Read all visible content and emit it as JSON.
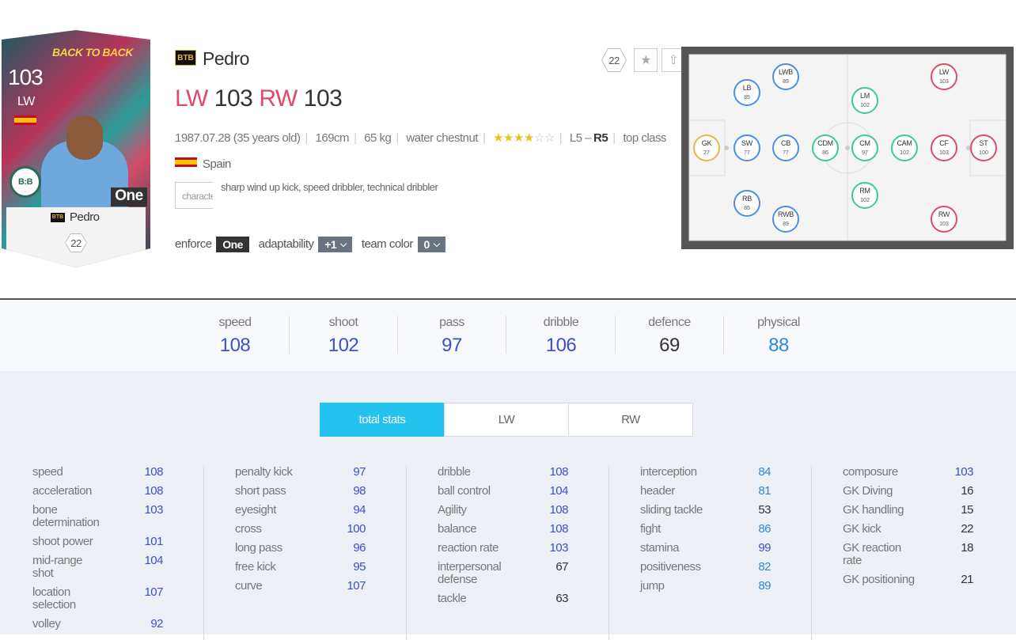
{
  "card": {
    "ovr": "103",
    "position": "LW",
    "season": "BACK TO BACK",
    "badge": "One",
    "emblem": "B:B",
    "tag": "BTB",
    "name": "Pedro",
    "level": "22"
  },
  "header": {
    "tag": "BTB",
    "name": "Pedro",
    "level": "22",
    "positions": [
      {
        "pos": "LW",
        "ovr": "103"
      },
      {
        "pos": "RW",
        "ovr": "103"
      }
    ]
  },
  "info": {
    "birth": "1987.07.28 (35 years old)",
    "height": "169cm",
    "weight": "65 kg",
    "body": "water chestnut",
    "stars_filled": "★★★★",
    "stars_empty": "☆☆",
    "foot_left": "L5 –",
    "foot_right": "R5",
    "grade": "top class",
    "nation": "Spain",
    "characteristic_label": "characteristic",
    "traits": "sharp wind up kick, speed dribbler, technical dribbler"
  },
  "controls": {
    "enforce_label": "enforce",
    "enforce": "One",
    "adaptability_label": "adaptability",
    "adaptability": "+1",
    "team_color_label": "team color",
    "team_color": "0"
  },
  "formation": {
    "nodes": [
      {
        "pos": "GK",
        "value": "27",
        "color": "#e8b64a"
      },
      {
        "pos": "LB",
        "value": "85",
        "color": "#4a90e2"
      },
      {
        "pos": "SW",
        "value": "77",
        "color": "#4a90e2"
      },
      {
        "pos": "RB",
        "value": "85",
        "color": "#4a90e2"
      },
      {
        "pos": "LWB",
        "value": "89",
        "color": "#4a90e2"
      },
      {
        "pos": "CB",
        "value": "77",
        "color": "#4a90e2"
      },
      {
        "pos": "RWB",
        "value": "89",
        "color": "#4a90e2"
      },
      {
        "pos": "CDM",
        "value": "86",
        "color": "#3cc9a0"
      },
      {
        "pos": "LM",
        "value": "102",
        "color": "#3cc9a0"
      },
      {
        "pos": "CM",
        "value": "97",
        "color": "#3cc9a0"
      },
      {
        "pos": "RM",
        "value": "102",
        "color": "#3cc9a0"
      },
      {
        "pos": "CAM",
        "value": "102",
        "color": "#3cc9a0"
      },
      {
        "pos": "LW",
        "value": "103",
        "color": "#e04a6a"
      },
      {
        "pos": "CF",
        "value": "103",
        "color": "#e04a6a"
      },
      {
        "pos": "RW",
        "value": "103",
        "color": "#e04a6a"
      },
      {
        "pos": "ST",
        "value": "100",
        "color": "#e04a6a"
      }
    ]
  },
  "summary": [
    {
      "label": "speed",
      "value": "108",
      "color": "#3b4fcf"
    },
    {
      "label": "shoot",
      "value": "102",
      "color": "#3b4fcf"
    },
    {
      "label": "pass",
      "value": "97",
      "color": "#3b4fcf"
    },
    {
      "label": "dribble",
      "value": "106",
      "color": "#3b4fcf"
    },
    {
      "label": "defence",
      "value": "69",
      "color": "#333333"
    },
    {
      "label": "physical",
      "value": "88",
      "color": "#2a8ad8"
    }
  ],
  "tabs": [
    "total stats",
    "LW",
    "RW"
  ],
  "stats": [
    [
      [
        "speed",
        "108"
      ],
      [
        "acceleration",
        "108"
      ],
      [
        "bone determination",
        "103"
      ],
      [
        "shoot power",
        "101"
      ],
      [
        "mid-range shot",
        "104"
      ],
      [
        "location selection",
        "107"
      ],
      [
        "volley",
        "92"
      ]
    ],
    [
      [
        "penalty kick",
        "97"
      ],
      [
        "short pass",
        "98"
      ],
      [
        "eyesight",
        "94"
      ],
      [
        "cross",
        "100"
      ],
      [
        "long pass",
        "96"
      ],
      [
        "free kick",
        "95"
      ],
      [
        "curve",
        "107"
      ]
    ],
    [
      [
        "dribble",
        "108"
      ],
      [
        "ball control",
        "104"
      ],
      [
        "Agility",
        "108"
      ],
      [
        "balance",
        "108"
      ],
      [
        "reaction rate",
        "103"
      ],
      [
        "interpersonal defense",
        "67"
      ],
      [
        "tackle",
        "63"
      ]
    ],
    [
      [
        "interception",
        "84"
      ],
      [
        "header",
        "81"
      ],
      [
        "sliding tackle",
        "53"
      ],
      [
        "fight",
        "86"
      ],
      [
        "stamina",
        "99"
      ],
      [
        "positiveness",
        "82"
      ],
      [
        "jump",
        "89"
      ]
    ],
    [
      [
        "composure",
        "103"
      ],
      [
        "GK Diving",
        "16"
      ],
      [
        "GK handling",
        "15"
      ],
      [
        "GK kick",
        "22"
      ],
      [
        "GK reaction rate",
        "18"
      ],
      [
        "GK positioning",
        "21"
      ]
    ]
  ]
}
